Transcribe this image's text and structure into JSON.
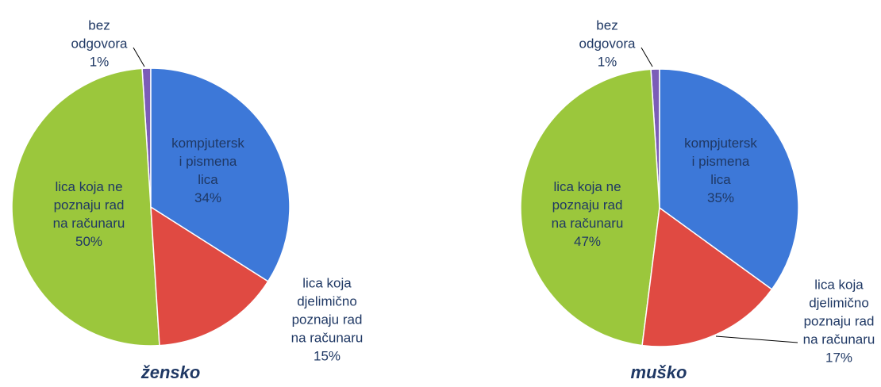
{
  "chart_data": [
    {
      "type": "pie",
      "title": "žensko",
      "categories": [
        "kompjuterski pismena lica",
        "lica koja djelimično poznaju rad na računaru",
        "lica koja ne poznaju rad na računaru",
        "bez odgovora"
      ],
      "values": [
        34,
        15,
        50,
        1
      ],
      "value_labels": [
        "34%",
        "15%",
        "50%",
        "1%"
      ],
      "colors": [
        "#3d78d8",
        "#e04a42",
        "#9bc73c",
        "#7b5cb8"
      ]
    },
    {
      "type": "pie",
      "title": "muško",
      "categories": [
        "kompjuterski pismena lica",
        "lica koja djelimično poznaju rad na računaru",
        "lica koja ne poznaju rad na računaru",
        "bez odgovora"
      ],
      "values": [
        35,
        17,
        47,
        1
      ],
      "value_labels": [
        "35%",
        "17%",
        "47%",
        "1%"
      ],
      "colors": [
        "#3d78d8",
        "#e04a42",
        "#9bc73c",
        "#7b5cb8"
      ]
    }
  ]
}
